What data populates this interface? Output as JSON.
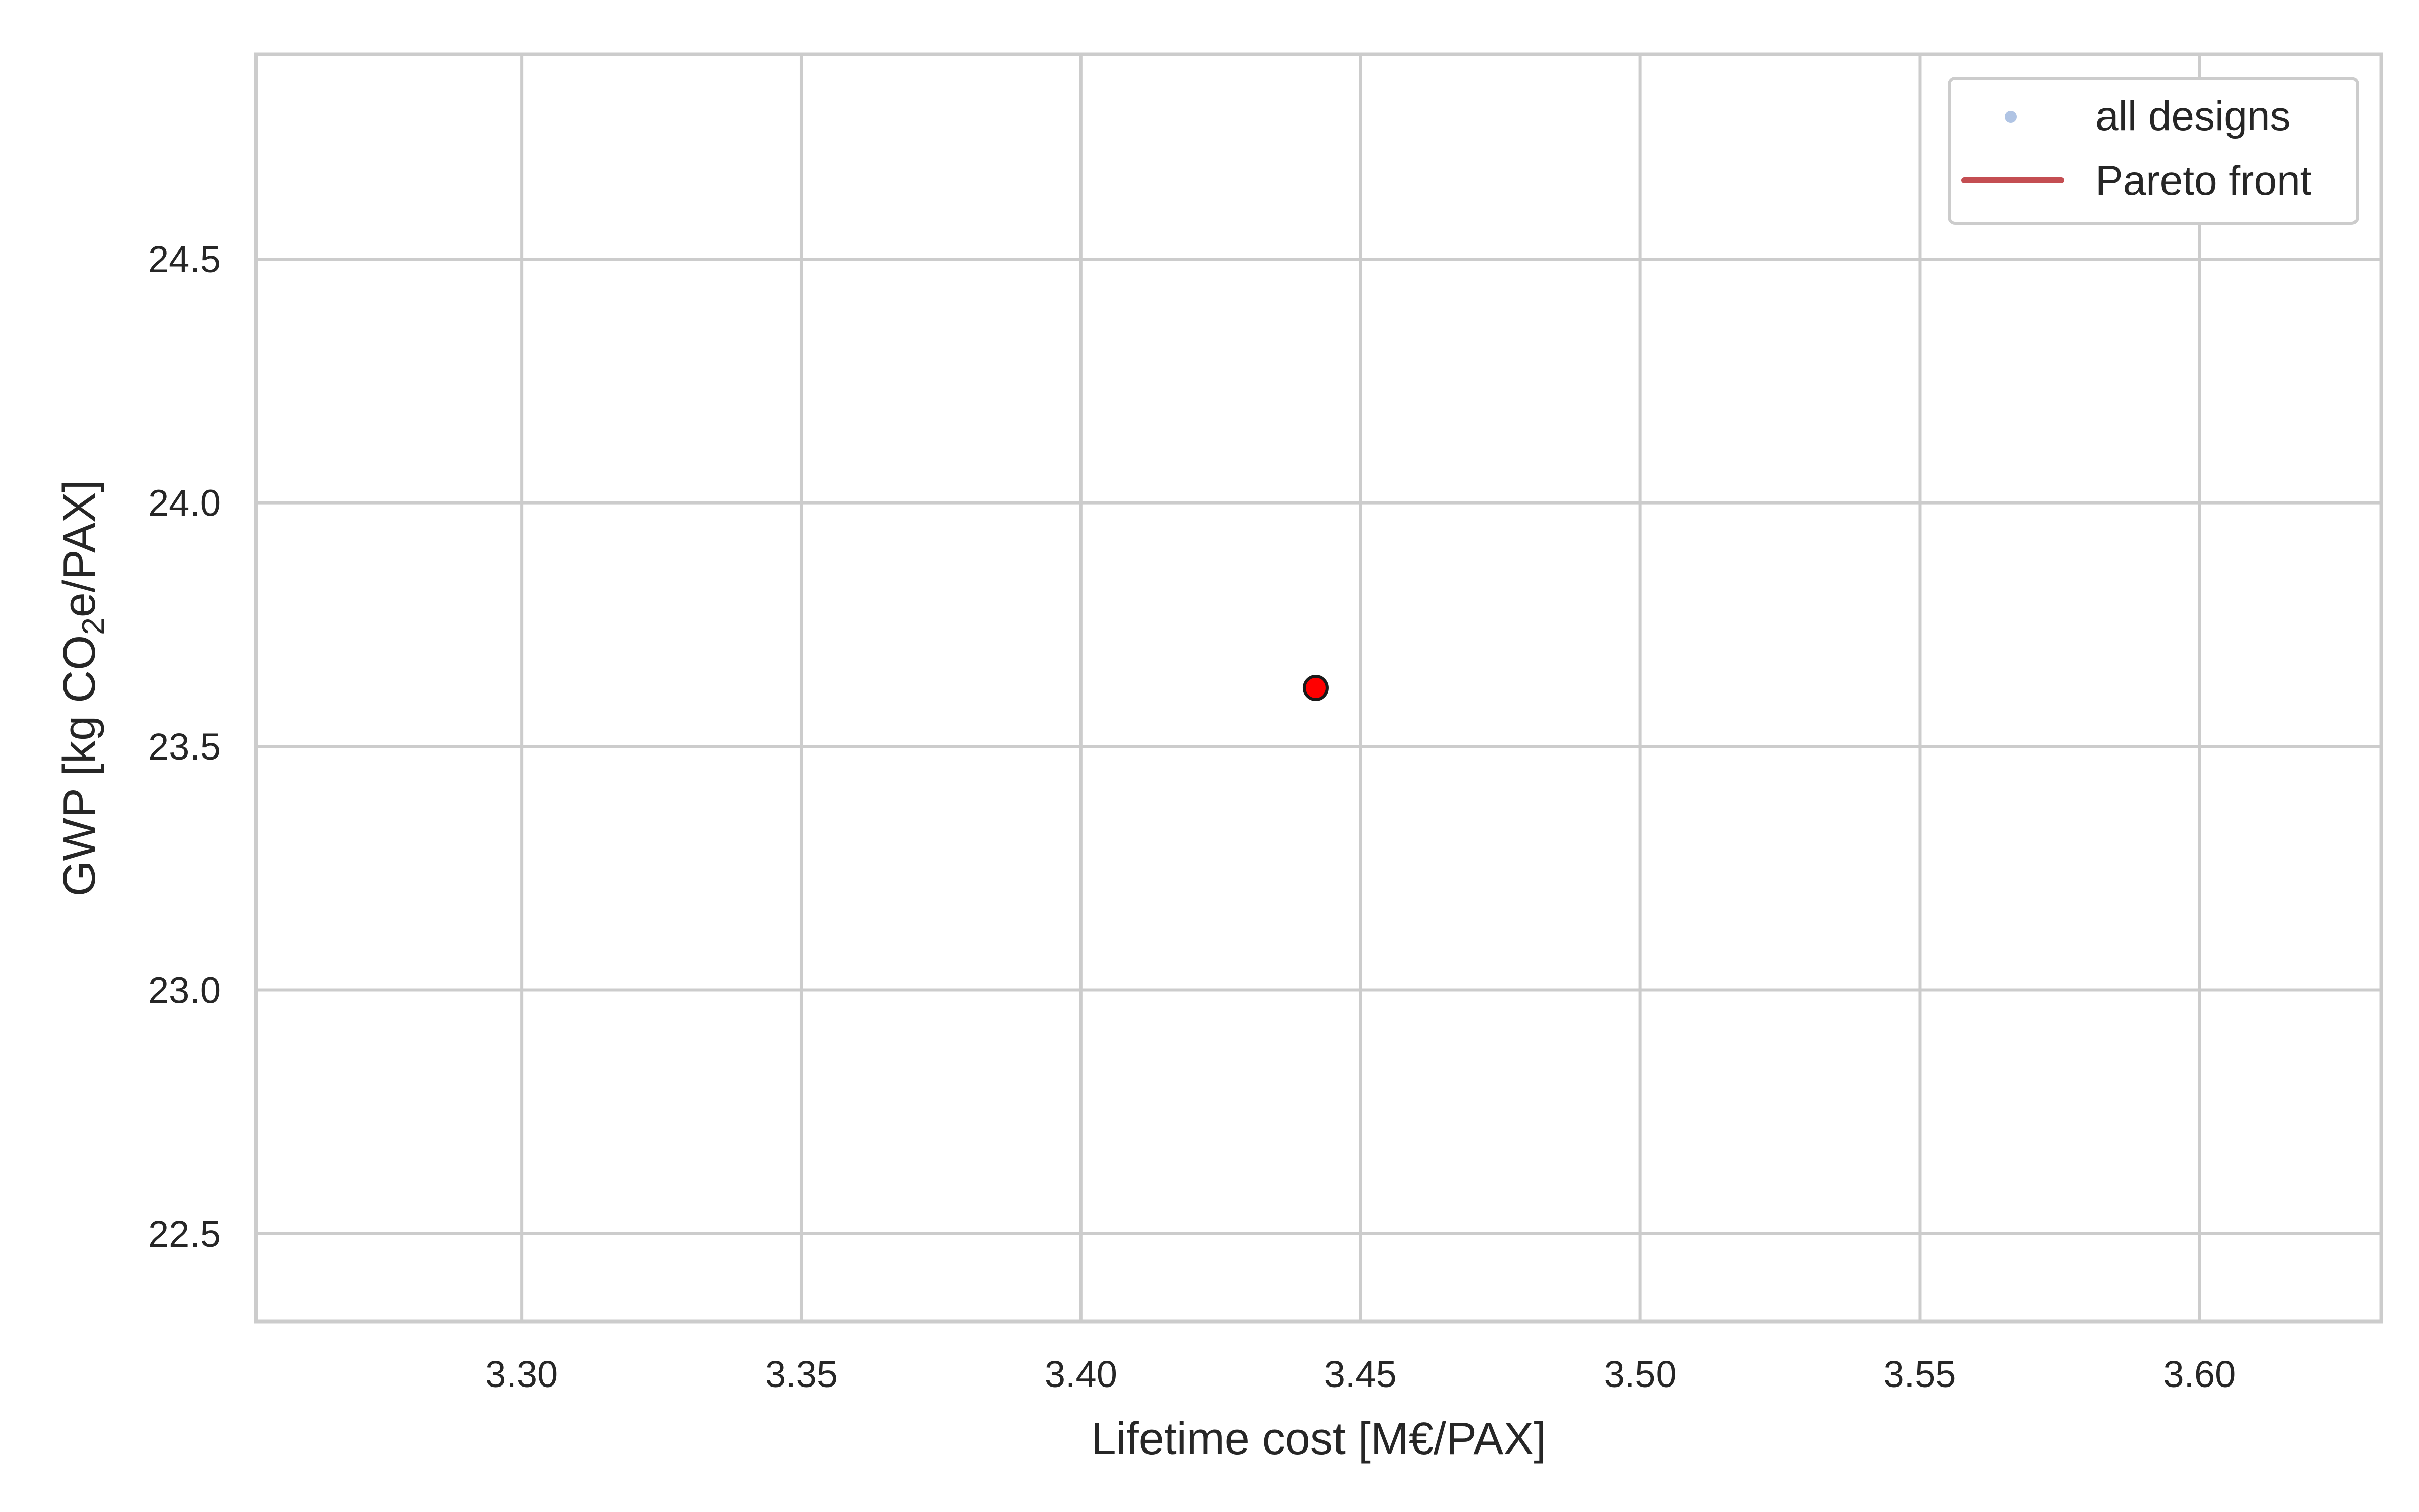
{
  "chart_data": {
    "type": "scatter",
    "title": "",
    "xlabel": "Lifetime cost [M€/PAX]",
    "ylabel_parts": [
      "GWP [kg CO",
      "2",
      "e/PAX]"
    ],
    "xlim": [
      3.2525,
      3.6325
    ],
    "ylim": [
      22.32,
      24.92
    ],
    "xticks": [
      "3.30",
      "3.35",
      "3.40",
      "3.45",
      "3.50",
      "3.55",
      "3.60"
    ],
    "xtick_values": [
      3.3,
      3.35,
      3.4,
      3.45,
      3.5,
      3.55,
      3.6
    ],
    "yticks": [
      "22.5",
      "23.0",
      "23.5",
      "24.0",
      "24.5"
    ],
    "ytick_values": [
      22.5,
      23.0,
      23.5,
      24.0,
      24.5
    ],
    "grid": true,
    "legend_position": "top-right",
    "series": [
      {
        "name": "all designs",
        "kind": "scatter",
        "color": "#b0c4e4",
        "points": []
      },
      {
        "name": "Pareto front",
        "kind": "line",
        "color": "#c44e52",
        "points": []
      }
    ],
    "highlight_points": [
      {
        "x": 3.442,
        "y": 23.62,
        "color": "#ff0000",
        "edgecolor": "#1a1a1a"
      }
    ]
  }
}
